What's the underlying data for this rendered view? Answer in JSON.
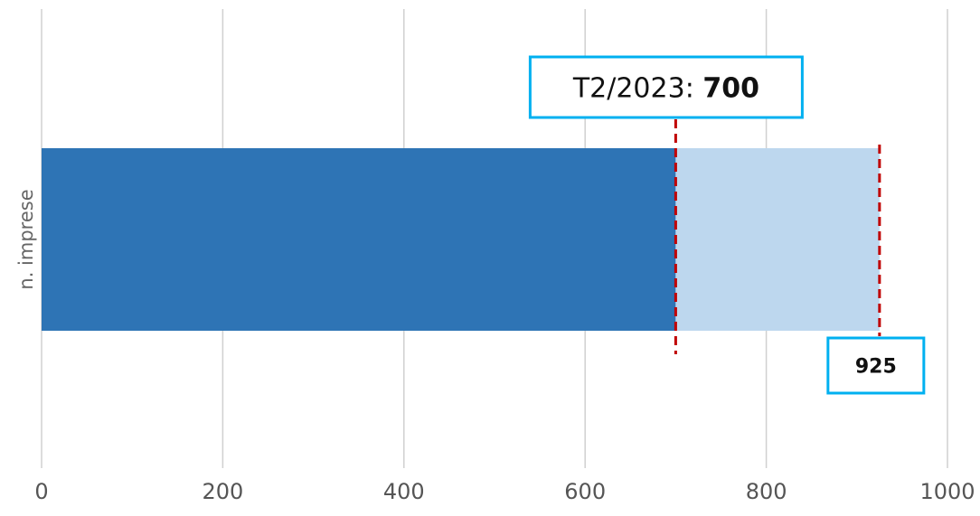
{
  "chart_data": {
    "type": "bar",
    "orientation": "horizontal",
    "stacked": true,
    "categories": [
      "n. imprese"
    ],
    "series": [
      {
        "values": [
          700
        ],
        "color": "#2E74B5"
      },
      {
        "values": [
          225
        ],
        "color": "#BDD7EE"
      }
    ],
    "xlim": [
      0,
      1000
    ],
    "x_ticks": [
      0,
      200,
      400,
      600,
      800,
      1000
    ],
    "x_tick_labels": [
      "0",
      "200",
      "400",
      "600",
      "800",
      "1000"
    ],
    "grid": "vertical",
    "annotations": [
      {
        "x": 700,
        "prefix": "T2/2023: ",
        "label": "700",
        "line_color": "#C00000",
        "box_color": "#00B0F0",
        "position": "top"
      },
      {
        "x": 925,
        "label": "925",
        "line_color": "#C00000",
        "box_color": "#00B0F0",
        "position": "bottom"
      }
    ]
  }
}
